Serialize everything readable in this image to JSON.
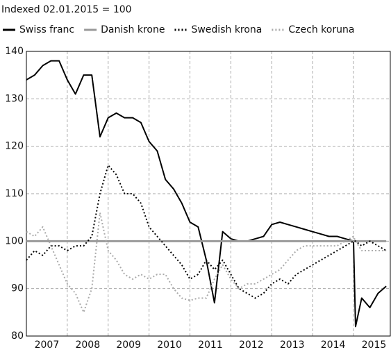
{
  "chart_data": {
    "type": "line",
    "title": "Indexed 02.01.2015 = 100",
    "x": [
      2007.0,
      2007.2,
      2007.4,
      2007.6,
      2007.8,
      2008.0,
      2008.2,
      2008.4,
      2008.6,
      2008.8,
      2009.0,
      2009.2,
      2009.4,
      2009.6,
      2009.8,
      2010.0,
      2010.2,
      2010.4,
      2010.6,
      2010.8,
      2011.0,
      2011.2,
      2011.4,
      2011.6,
      2011.8,
      2012.0,
      2012.2,
      2012.4,
      2012.6,
      2012.8,
      2013.0,
      2013.2,
      2013.4,
      2013.6,
      2013.8,
      2014.0,
      2014.2,
      2014.4,
      2014.6,
      2014.8,
      2015.0,
      2015.05,
      2015.2,
      2015.4,
      2015.6,
      2015.8
    ],
    "series": [
      {
        "name": "Swiss franc",
        "color": "#000000",
        "dash": "solid",
        "values": [
          134,
          135,
          137,
          138,
          138,
          134,
          131,
          135,
          135,
          122,
          126,
          127,
          126,
          126,
          125,
          121,
          119,
          113,
          111,
          108,
          104,
          103,
          96,
          87,
          102,
          100.5,
          100,
          100,
          100.5,
          101,
          103.5,
          104,
          103.5,
          103,
          102.5,
          102,
          101.5,
          101,
          101,
          100.5,
          100,
          82,
          88,
          86,
          89,
          90.5
        ]
      },
      {
        "name": "Danish krone",
        "color": "#999999",
        "dash": "solid",
        "values": [
          100,
          100,
          100,
          100,
          100,
          100,
          100,
          100,
          100,
          100,
          100,
          100,
          100,
          100,
          100,
          100,
          100,
          100,
          100,
          100,
          100,
          100,
          100,
          100,
          100,
          100,
          100,
          100,
          100,
          100,
          100,
          100,
          100,
          100,
          100,
          100,
          100,
          100,
          100,
          100,
          100,
          100,
          100,
          100,
          100,
          100
        ]
      },
      {
        "name": "Swedish krona",
        "color": "#000000",
        "dash": "dotted",
        "values": [
          96,
          98,
          97,
          99,
          99,
          98,
          99,
          99,
          101,
          110,
          116,
          114,
          110,
          110,
          108,
          103,
          101,
          99,
          97,
          95,
          92,
          93,
          96,
          94,
          96,
          93,
          90,
          89,
          88,
          89,
          91,
          92,
          91,
          93,
          94,
          95,
          96,
          97,
          98,
          99,
          100,
          100,
          99,
          100,
          99,
          98
        ]
      },
      {
        "name": "Czech koruna",
        "color": "#aaaaaa",
        "dash": "dotted",
        "values": [
          102,
          101,
          103,
          99,
          95,
          91,
          89,
          85,
          90,
          106,
          98,
          96,
          93,
          92,
          93,
          92,
          93,
          93,
          90,
          88,
          87.5,
          88,
          88,
          92,
          95,
          92,
          90,
          91,
          91,
          92,
          93,
          94,
          96,
          98,
          99,
          99,
          99,
          99,
          99,
          100,
          101,
          100,
          98,
          98,
          98,
          98
        ]
      }
    ],
    "xlim": [
      2007,
      2015.9
    ],
    "xgrid": [
      2008,
      2009,
      2010,
      2011,
      2012,
      2013,
      2014,
      2015
    ],
    "xticks": [
      {
        "value": 2007.5,
        "label": "2007"
      },
      {
        "value": 2008.5,
        "label": "2008"
      },
      {
        "value": 2009.5,
        "label": "2009"
      },
      {
        "value": 2010.5,
        "label": "2010"
      },
      {
        "value": 2011.5,
        "label": "2011"
      },
      {
        "value": 2012.5,
        "label": "2012"
      },
      {
        "value": 2013.5,
        "label": "2013"
      },
      {
        "value": 2014.5,
        "label": "2014"
      },
      {
        "value": 2015.5,
        "label": "2015"
      }
    ],
    "ylim": [
      80,
      140
    ],
    "yticks": [
      80,
      90,
      100,
      110,
      120,
      130,
      140
    ],
    "grid": true
  }
}
